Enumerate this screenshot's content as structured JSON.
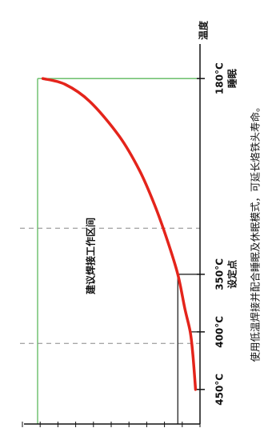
{
  "chart_data": {
    "type": "line",
    "title": "",
    "axis_label": "温度",
    "zone_label": "建议焊接工作区间",
    "note": "使用低温焊接并配合睡眠及休眠模式，可延长烙铁头寿命。",
    "ticks": [
      {
        "value": 180,
        "label": "180°C",
        "sublabel": "睡眠"
      },
      {
        "value": 350,
        "label": "350°C",
        "sublabel": "设定点"
      },
      {
        "value": 400,
        "label": "400°C",
        "sublabel": ""
      },
      {
        "value": 450,
        "label": "450°C",
        "sublabel": ""
      }
    ],
    "x_range": [
      150,
      480
    ],
    "y_range": [
      0,
      10
    ],
    "curve": [
      {
        "x": 450,
        "y": 0.25
      },
      {
        "x": 420,
        "y": 0.4
      },
      {
        "x": 400,
        "y": 0.55
      },
      {
        "x": 380,
        "y": 0.85
      },
      {
        "x": 350,
        "y": 1.25
      },
      {
        "x": 320,
        "y": 1.85
      },
      {
        "x": 290,
        "y": 2.55
      },
      {
        "x": 260,
        "y": 3.4
      },
      {
        "x": 230,
        "y": 4.55
      },
      {
        "x": 200,
        "y": 6.2
      },
      {
        "x": 185,
        "y": 7.6
      },
      {
        "x": 180,
        "y": 8.85
      }
    ],
    "dashed_lines": [
      310,
      410
    ],
    "colors": {
      "curve": "#e4241b",
      "sleep": "#5cb85c",
      "axis": "#111111",
      "dash": "#888888"
    }
  }
}
